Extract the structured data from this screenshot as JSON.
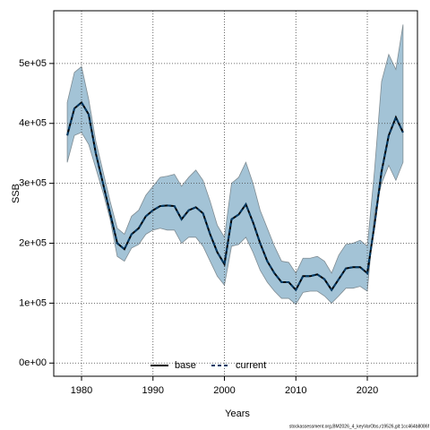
{
  "chart_data": {
    "type": "line",
    "xlabel": "Years",
    "ylabel": "SSB",
    "x": [
      1978,
      1979,
      1980,
      1981,
      1982,
      1983,
      1984,
      1985,
      1986,
      1987,
      1988,
      1989,
      1990,
      1991,
      1992,
      1993,
      1994,
      1995,
      1996,
      1997,
      1998,
      1999,
      2000,
      2001,
      2002,
      2003,
      2004,
      2005,
      2006,
      2007,
      2008,
      2009,
      2010,
      2011,
      2012,
      2013,
      2014,
      2015,
      2016,
      2017,
      2018,
      2019,
      2020,
      2021,
      2022,
      2023,
      2024,
      2025
    ],
    "series": [
      {
        "name": "base",
        "color": "#000000",
        "dash": false,
        "values": [
          380000,
          425000,
          435000,
          415000,
          350000,
          300000,
          250000,
          200000,
          190000,
          215000,
          225000,
          245000,
          255000,
          262000,
          263000,
          262000,
          240000,
          255000,
          260000,
          250000,
          215000,
          185000,
          165000,
          240000,
          248000,
          265000,
          235000,
          200000,
          170000,
          150000,
          135000,
          135000,
          122000,
          145000,
          145000,
          148000,
          140000,
          122000,
          140000,
          158000,
          160000,
          160000,
          150000,
          230000,
          320000,
          380000,
          410000,
          385000
        ]
      },
      {
        "name": "current",
        "color": "#003a66",
        "dash": true,
        "values": [
          380000,
          425000,
          435000,
          415000,
          350000,
          300000,
          250000,
          200000,
          190000,
          215000,
          225000,
          245000,
          255000,
          262000,
          263000,
          262000,
          240000,
          255000,
          260000,
          250000,
          215000,
          185000,
          165000,
          240000,
          248000,
          265000,
          235000,
          200000,
          170000,
          150000,
          135000,
          135000,
          122000,
          145000,
          145000,
          148000,
          140000,
          122000,
          140000,
          158000,
          160000,
          160000,
          150000,
          230000,
          320000,
          380000,
          410000,
          385000
        ]
      }
    ],
    "band": {
      "color": "#a3c3d6",
      "upper": [
        435000,
        485000,
        495000,
        440000,
        370000,
        320000,
        270000,
        225000,
        215000,
        245000,
        255000,
        280000,
        295000,
        310000,
        312000,
        315000,
        295000,
        310000,
        322000,
        305000,
        270000,
        230000,
        210000,
        300000,
        310000,
        335000,
        300000,
        255000,
        225000,
        195000,
        170000,
        168000,
        150000,
        175000,
        175000,
        178000,
        170000,
        150000,
        180000,
        198000,
        200000,
        205000,
        195000,
        320000,
        470000,
        515000,
        490000,
        565000
      ],
      "lower": [
        335000,
        380000,
        385000,
        365000,
        325000,
        285000,
        240000,
        178000,
        170000,
        192000,
        198000,
        215000,
        222000,
        225000,
        222000,
        222000,
        200000,
        210000,
        210000,
        195000,
        170000,
        145000,
        130000,
        195000,
        198000,
        210000,
        185000,
        155000,
        135000,
        120000,
        108000,
        108000,
        98000,
        118000,
        120000,
        120000,
        112000,
        100000,
        112000,
        125000,
        125000,
        128000,
        120000,
        250000,
        300000,
        330000,
        305000,
        335000
      ]
    },
    "xlim": [
      1976.11,
      2027.02
    ],
    "xticks": [
      1980,
      1990,
      2000,
      2010,
      2020
    ],
    "ylim": [
      -22000,
      588000
    ],
    "yticks": [
      {
        "value": 0,
        "label": "0e+00"
      },
      {
        "value": 100000,
        "label": "1e+05"
      },
      {
        "value": 200000,
        "label": "2e+05"
      },
      {
        "value": 300000,
        "label": "3e+05"
      },
      {
        "value": 400000,
        "label": "4e+05"
      },
      {
        "value": 500000,
        "label": "5e+05"
      }
    ],
    "grid": true,
    "legend": "bottom",
    "footnote": "stockassessment.org,BM2026_4_keyVarObs,r19526,git:1cc464b8086f"
  }
}
